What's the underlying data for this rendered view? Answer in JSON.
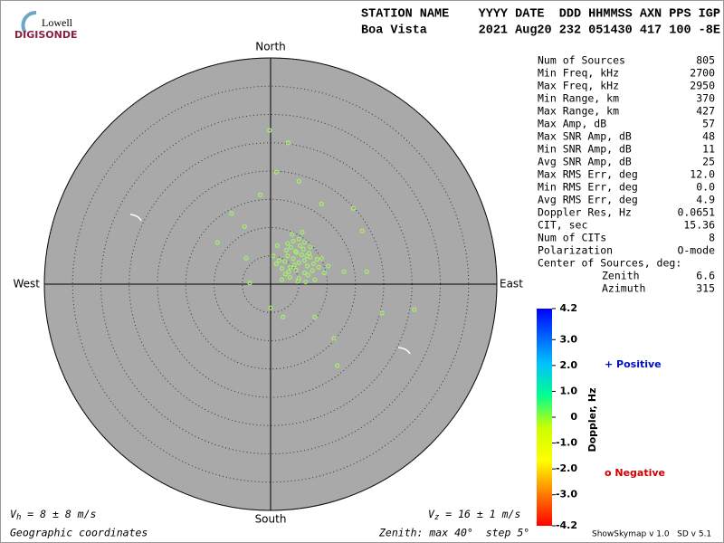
{
  "logo": {
    "top": "Lowell",
    "bottom": "DIGISONDE"
  },
  "header": {
    "columns": "STATION NAME    YYYY DATE  DDD HHMMSS AXN PPS IGP",
    "values": "Boa Vista       2021 Aug20 232 051430 417 100 -8E"
  },
  "stats": {
    "rows": [
      [
        "Num of Sources",
        "805"
      ],
      [
        "Min Freq, kHz",
        "2700"
      ],
      [
        "Max Freq, kHz",
        "2950"
      ],
      [
        "Min Range, km",
        "370"
      ],
      [
        "Max Range, km",
        "427"
      ],
      [
        "Max Amp, dB",
        "57"
      ],
      [
        "Max SNR Amp, dB",
        "48"
      ],
      [
        "Min SNR Amp, dB",
        "11"
      ],
      [
        "Avg SNR Amp, dB",
        "25"
      ],
      [
        "Max RMS Err, deg",
        "12.0"
      ],
      [
        "Min RMS Err, deg",
        "0.0"
      ],
      [
        "Avg RMS Err, deg",
        "4.9"
      ],
      [
        "Doppler Res, Hz",
        "0.0651"
      ],
      [
        "CIT, sec",
        "15.36"
      ],
      [
        "Num of CITs",
        "8"
      ],
      [
        "Polarization",
        "O-mode"
      ]
    ],
    "center_heading": "Center of Sources, deg:",
    "center_rows": [
      [
        "Zenith",
        "6.6"
      ],
      [
        "Azimuth",
        "315"
      ]
    ]
  },
  "footer": {
    "vh": {
      "symbol": "V",
      "sub": "h",
      "text": " = 8 ± 8 m/s"
    },
    "vz": {
      "symbol": "V",
      "sub": "z",
      "text": " = 16 ± 1 m/s"
    },
    "coords": "Geographic coordinates",
    "zenith": "Zenith: max 40°  step 5°",
    "version": "ShowSkymap v 1.0   SD v 5.1"
  },
  "legend": {
    "positive": "+ Positive",
    "negative": "o Negative"
  },
  "chart_data": {
    "type": "skymap",
    "directions": {
      "north": "North",
      "south": "South",
      "east": "East",
      "west": "West"
    },
    "rlim": [
      0,
      40
    ],
    "rticks": [
      5,
      10,
      15,
      20,
      25,
      30,
      35,
      40
    ],
    "color": "#a6f06a",
    "points": {
      "x": [
        -0.2,
        3.1,
        1,
        -6.9,
        16.2,
        25.4,
        11.8,
        11.2,
        19.7,
        7.8,
        2.2,
        0,
        -9.4,
        -4.6,
        5,
        -1.8,
        13,
        17,
        14.6,
        9,
        -3.7,
        -4.3,
        2.5,
        3,
        3.5,
        4,
        4.5,
        5,
        5.5,
        6,
        6.5,
        7,
        2,
        2.8,
        3.6,
        4.4,
        5.2,
        6,
        6.8,
        7.6,
        1.5,
        2.6,
        3.4,
        4.2,
        5,
        5.8,
        6.6,
        7.4,
        8.2,
        3,
        4,
        5,
        6,
        7,
        1,
        0.5,
        8.5,
        9,
        9.5,
        2,
        4.8,
        6.2,
        3.8,
        5.6,
        4.6,
        7.8,
        1.2,
        10.2,
        3.2,
        6.4
      ],
      "y": [
        27.2,
        25,
        19.8,
        12.5,
        9.4,
        -4.5,
        -14.4,
        -9.6,
        -5.1,
        -5.8,
        -5.8,
        -4.2,
        7.4,
        10.2,
        18.2,
        15.8,
        2.2,
        2.2,
        13.4,
        14.2,
        0.2,
        4.6,
        4,
        5,
        3,
        4.5,
        2.5,
        3.8,
        5.2,
        4.2,
        3.2,
        4.8,
        2.8,
        6,
        6.5,
        5.8,
        6.8,
        2,
        5.5,
        3.6,
        4.2,
        1.8,
        1.2,
        3.4,
        1,
        6.2,
        1.6,
        2.4,
        4.4,
        7.2,
        7.6,
        8,
        7.4,
        6.6,
        3.6,
        5,
        3,
        4.6,
        2,
        0.8,
        0.5,
        0.4,
        8.8,
        9.2,
        5.6,
        0.8,
        6.8,
        3.2,
        2.2,
        5
      ]
    },
    "colorbar": {
      "label": "Doppler, Hz",
      "ylim": [
        -4.2,
        4.2
      ],
      "ticks": [
        4.2,
        {
          "value": 3,
          "label": "3.0"
        },
        {
          "value": 2,
          "label": "2.0"
        },
        {
          "value": 1,
          "label": "1.0"
        },
        0,
        {
          "value": -1,
          "label": "-1.0"
        },
        {
          "value": -2,
          "label": "-2.0"
        },
        {
          "value": -3,
          "label": "-3.0"
        },
        -4.2
      ]
    }
  }
}
